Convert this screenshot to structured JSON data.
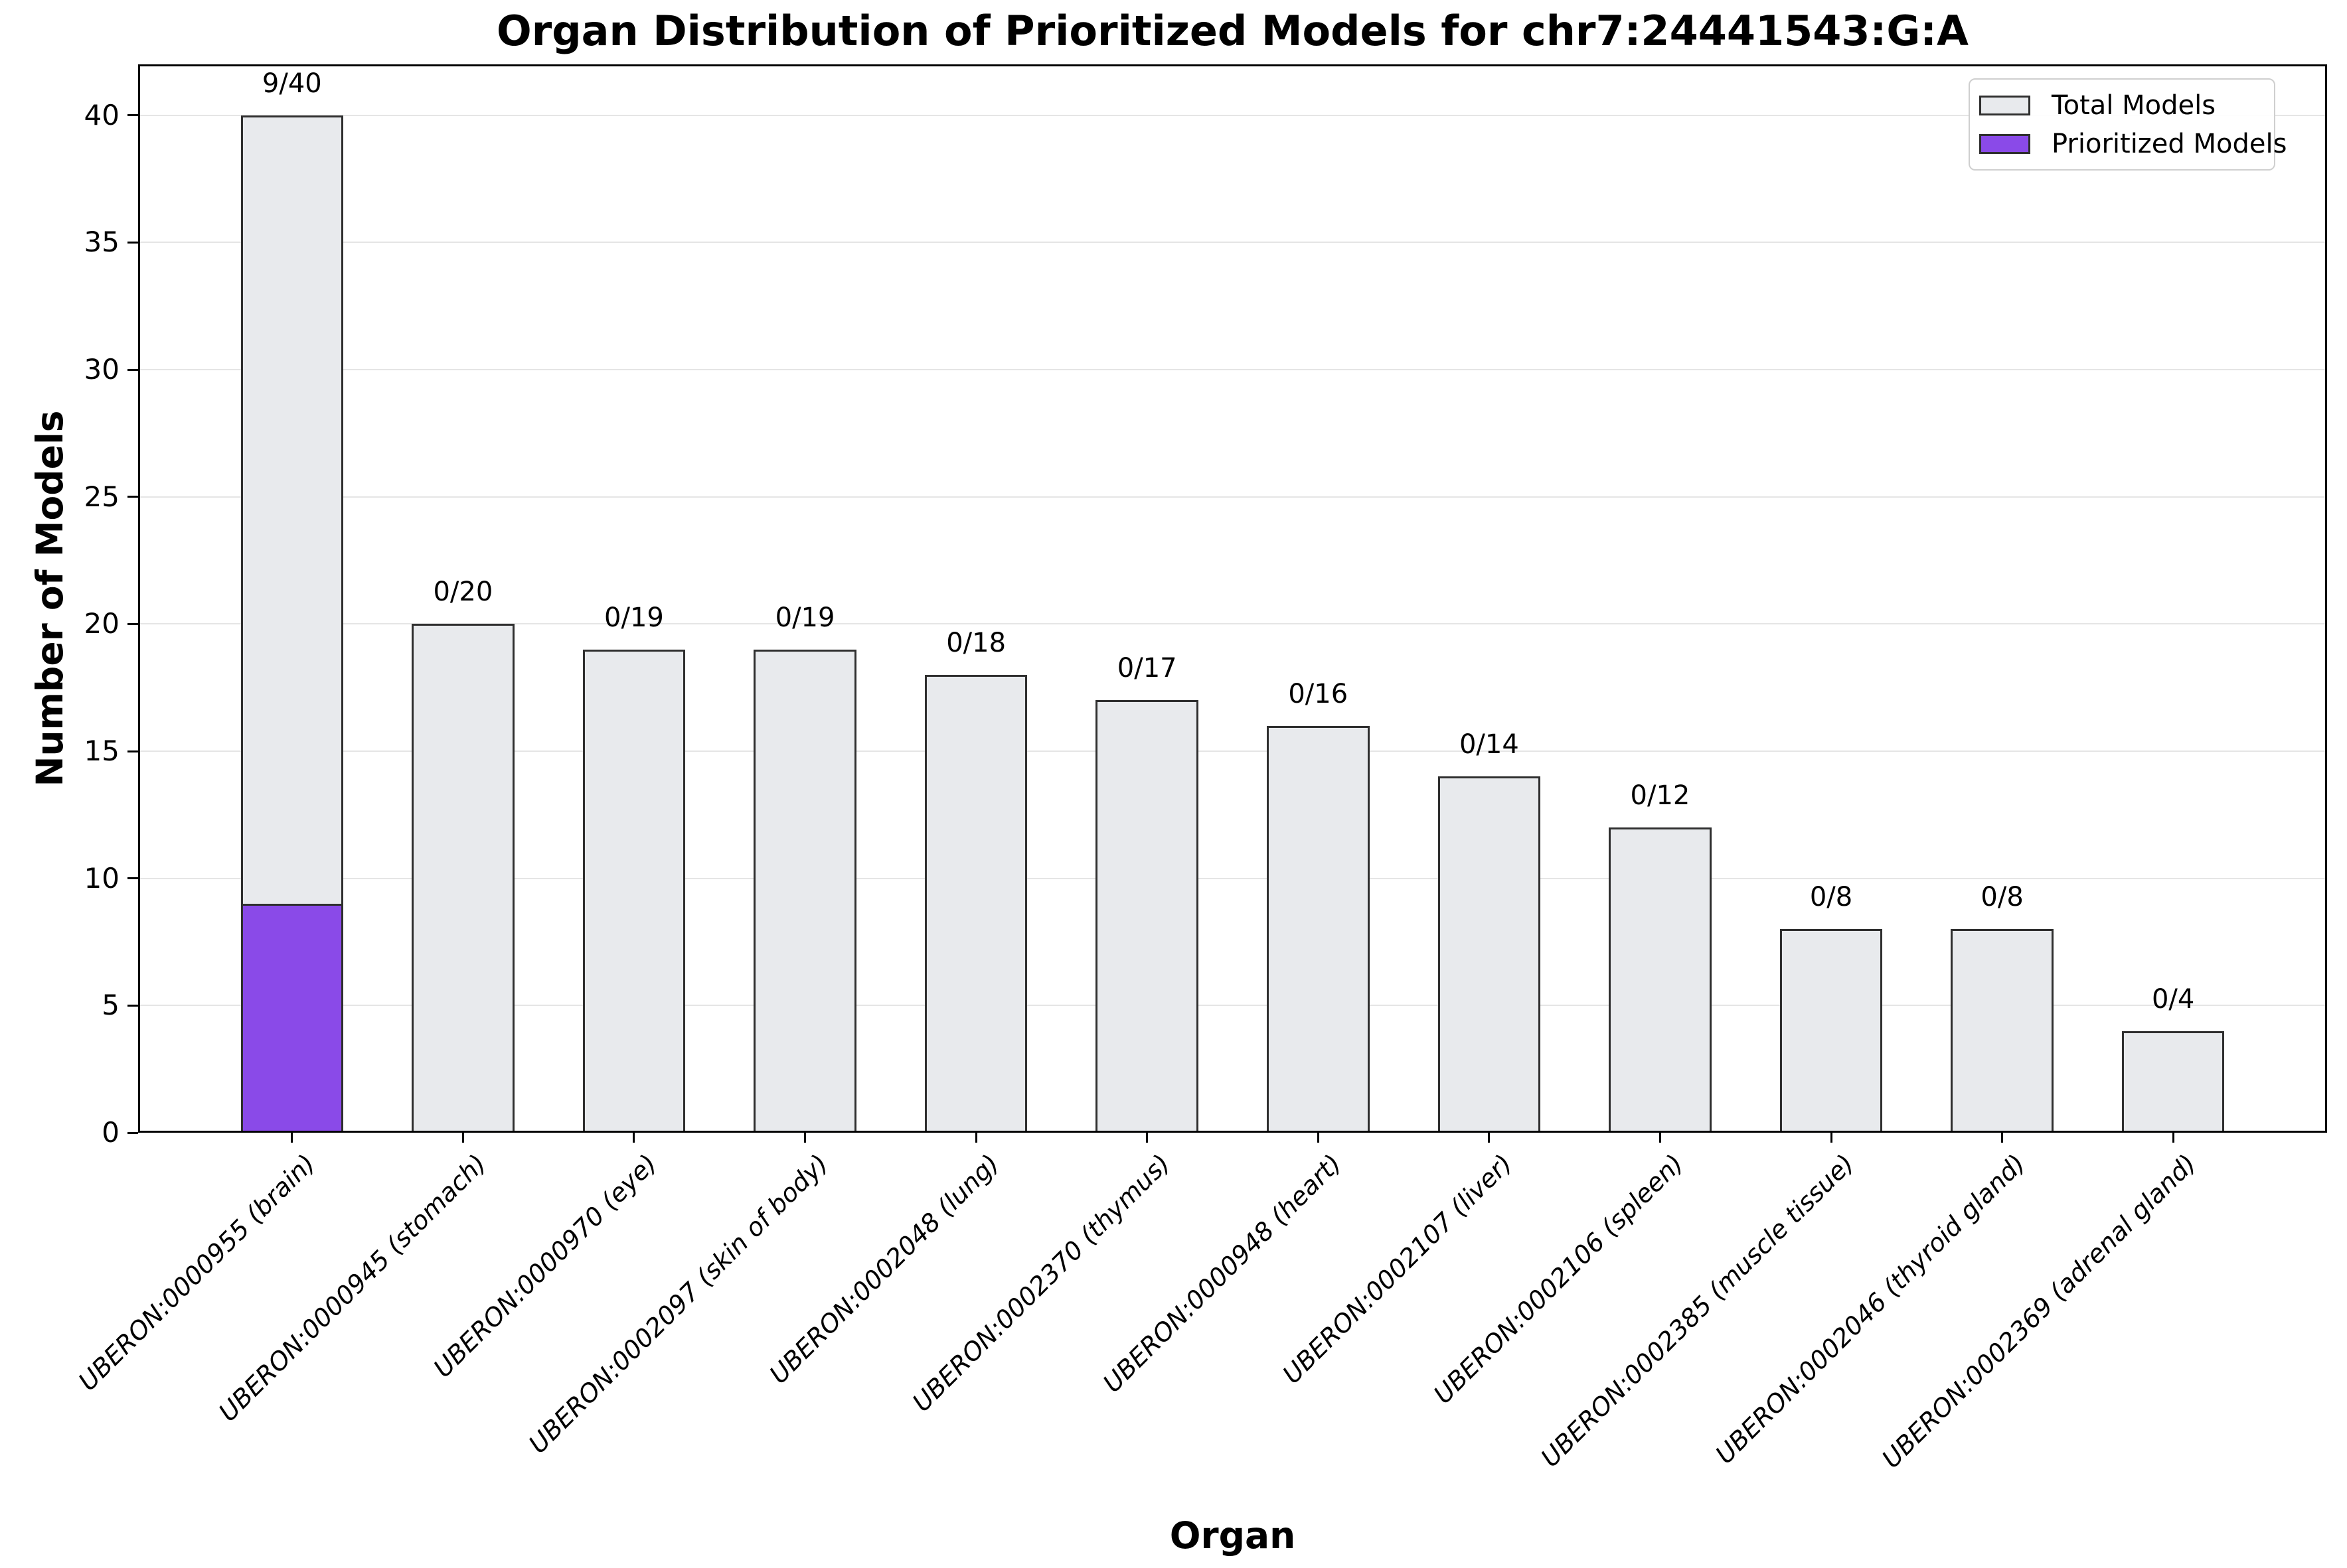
{
  "title": "Organ Distribution of Prioritized Models for chr7:24441543:G:A",
  "chart_data": {
    "type": "bar",
    "title": "Organ Distribution of Prioritized Models for chr7:24441543:G:A",
    "xlabel": "Organ",
    "ylabel": "Number of Models",
    "ylim": [
      0,
      42
    ],
    "yticks": [
      0,
      5,
      10,
      15,
      20,
      25,
      30,
      35,
      40
    ],
    "grid": true,
    "legend_position": "upper right",
    "categories": [
      "UBERON:0000955 (brain)",
      "UBERON:0000945 (stomach)",
      "UBERON:0000970 (eye)",
      "UBERON:0002097 (skin of body)",
      "UBERON:0002048 (lung)",
      "UBERON:0002370 (thymus)",
      "UBERON:0000948 (heart)",
      "UBERON:0002107 (liver)",
      "UBERON:0002106 (spleen)",
      "UBERON:0002385 (muscle tissue)",
      "UBERON:0002046 (thyroid gland)",
      "UBERON:0002369 (adrenal gland)"
    ],
    "series": [
      {
        "name": "Total Models",
        "values": [
          40,
          20,
          19,
          19,
          18,
          17,
          16,
          14,
          12,
          8,
          8,
          4
        ],
        "color": "#e8eaed"
      },
      {
        "name": "Prioritized Models",
        "values": [
          9,
          0,
          0,
          0,
          0,
          0,
          0,
          0,
          0,
          0,
          0,
          0
        ],
        "color": "#8a4ae8"
      }
    ],
    "bar_labels": [
      "9/40",
      "0/20",
      "0/19",
      "0/19",
      "0/18",
      "0/17",
      "0/16",
      "0/14",
      "0/12",
      "0/8",
      "0/8",
      "0/4"
    ]
  },
  "colors": {
    "bar_fill": "#e8eaed",
    "bar_edge": "#2f2f2f",
    "prioritized": "#8a4ae8",
    "grid": "#e5e5e5",
    "spine": "#000000",
    "legend_border": "#cfcfcf"
  }
}
